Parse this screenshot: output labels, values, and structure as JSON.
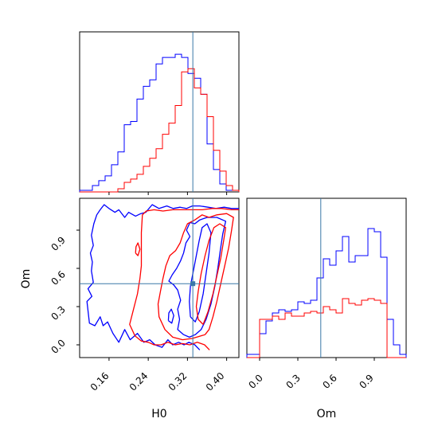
{
  "chart_data": {
    "type": "corner",
    "parameters": [
      "H0",
      "Om"
    ],
    "truth": {
      "H0": 0.331,
      "Om": 0.48
    },
    "truth_color": "#3a78a8",
    "series_colors": [
      "#0000ff",
      "#ff0000"
    ],
    "panels": [
      {
        "id": "H0-marginal",
        "type": "histogram",
        "xlim": [
          0.1,
          0.425
        ],
        "bin_edges": [
          0.1,
          0.113,
          0.126,
          0.139,
          0.152,
          0.165,
          0.178,
          0.191,
          0.204,
          0.217,
          0.23,
          0.243,
          0.256,
          0.269,
          0.282,
          0.295,
          0.308,
          0.321,
          0.334,
          0.347,
          0.36,
          0.373,
          0.386,
          0.399,
          0.412,
          0.425
        ],
        "series": [
          {
            "counts": [
              0.01,
              0.01,
              0.04,
              0.07,
              0.1,
              0.17,
              0.25,
              0.42,
              0.44,
              0.58,
              0.66,
              0.7,
              0.8,
              0.84,
              0.84,
              0.86,
              0.84,
              0.74,
              0.71,
              0.61,
              0.3,
              0.14,
              0.05,
              0.01,
              0.01
            ]
          },
          {
            "counts": [
              0,
              0,
              0,
              0,
              0,
              0,
              0.02,
              0.06,
              0.08,
              0.11,
              0.16,
              0.21,
              0.27,
              0.36,
              0.43,
              0.54,
              0.75,
              0.77,
              0.65,
              0.61,
              0.47,
              0.26,
              0.13,
              0.04,
              0.01
            ]
          }
        ],
        "ticks": [
          0.16,
          0.24,
          0.32,
          0.4
        ]
      },
      {
        "id": "H0-Om-joint",
        "type": "contour",
        "xlim": [
          0.1,
          0.425
        ],
        "ylim": [
          -0.1,
          1.15
        ],
        "xlabel": "H0",
        "ylabel": "Om",
        "xticks": [
          "0.16",
          "0.24",
          "0.32",
          "0.40"
        ],
        "yticks": [
          "0.0",
          "0.3",
          "0.6",
          "0.9"
        ],
        "contours": [
          {
            "name": "blue-outer",
            "points": [
              [
                0.345,
                -0.04
              ],
              [
                0.335,
                0.0
              ],
              [
                0.323,
                0.02
              ],
              [
                0.313,
                0.0
              ],
              [
                0.302,
                0.02
              ],
              [
                0.29,
                0.0
              ],
              [
                0.28,
                0.04
              ],
              [
                0.268,
                -0.02
              ],
              [
                0.254,
                0.0
              ],
              [
                0.243,
                0.04
              ],
              [
                0.231,
                0.02
              ],
              [
                0.218,
                0.09
              ],
              [
                0.203,
                0.04
              ],
              [
                0.192,
                0.12
              ],
              [
                0.18,
                0.02
              ],
              [
                0.168,
                0.09
              ],
              [
                0.157,
                0.18
              ],
              [
                0.148,
                0.15
              ],
              [
                0.142,
                0.22
              ],
              [
                0.131,
                0.15
              ],
              [
                0.12,
                0.17
              ],
              [
                0.115,
                0.34
              ],
              [
                0.125,
                0.38
              ],
              [
                0.117,
                0.44
              ],
              [
                0.128,
                0.49
              ],
              [
                0.124,
                0.58
              ],
              [
                0.126,
                0.65
              ],
              [
                0.122,
                0.72
              ],
              [
                0.128,
                0.78
              ],
              [
                0.124,
                0.86
              ],
              [
                0.129,
                0.95
              ],
              [
                0.135,
                1.02
              ],
              [
                0.142,
                1.06
              ],
              [
                0.15,
                1.1
              ],
              [
                0.16,
                1.07
              ],
              [
                0.172,
                1.04
              ],
              [
                0.18,
                1.06
              ],
              [
                0.192,
                1.0
              ],
              [
                0.2,
                1.04
              ],
              [
                0.214,
                1.01
              ],
              [
                0.225,
                1.03
              ],
              [
                0.235,
                1.04
              ],
              [
                0.248,
                1.1
              ],
              [
                0.262,
                1.07
              ],
              [
                0.278,
                1.09
              ],
              [
                0.291,
                1.07
              ],
              [
                0.305,
                1.08
              ],
              [
                0.318,
                1.07
              ],
              [
                0.33,
                1.09
              ],
              [
                0.345,
                1.09
              ],
              [
                0.362,
                1.08
              ],
              [
                0.378,
                1.07
              ],
              [
                0.395,
                1.08
              ],
              [
                0.41,
                1.07
              ],
              [
                0.425,
                1.07
              ]
            ]
          },
          {
            "name": "blue-inner",
            "points": [
              [
                0.312,
                0.08
              ],
              [
                0.324,
                0.06
              ],
              [
                0.336,
                0.08
              ],
              [
                0.348,
                0.12
              ],
              [
                0.358,
                0.2
              ],
              [
                0.368,
                0.32
              ],
              [
                0.376,
                0.46
              ],
              [
                0.382,
                0.6
              ],
              [
                0.387,
                0.74
              ],
              [
                0.392,
                0.87
              ],
              [
                0.398,
                0.97
              ],
              [
                0.38,
                1.0
              ],
              [
                0.36,
                1.0
              ],
              [
                0.345,
                0.98
              ],
              [
                0.335,
                0.95
              ],
              [
                0.325,
                0.96
              ],
              [
                0.318,
                0.9
              ],
              [
                0.325,
                0.85
              ],
              [
                0.317,
                0.8
              ],
              [
                0.312,
                0.72
              ],
              [
                0.306,
                0.66
              ],
              [
                0.298,
                0.6
              ],
              [
                0.289,
                0.55
              ],
              [
                0.282,
                0.5
              ],
              [
                0.292,
                0.47
              ],
              [
                0.3,
                0.43
              ],
              [
                0.306,
                0.35
              ],
              [
                0.3,
                0.28
              ],
              [
                0.304,
                0.2
              ],
              [
                0.3,
                0.12
              ],
              [
                0.312,
                0.08
              ]
            ]
          },
          {
            "name": "blue-core",
            "points": [
              [
                0.326,
                0.22
              ],
              [
                0.336,
                0.18
              ],
              [
                0.344,
                0.26
              ],
              [
                0.352,
                0.4
              ],
              [
                0.358,
                0.56
              ],
              [
                0.364,
                0.72
              ],
              [
                0.368,
                0.88
              ],
              [
                0.36,
                0.95
              ],
              [
                0.35,
                0.92
              ],
              [
                0.344,
                0.82
              ],
              [
                0.338,
                0.7
              ],
              [
                0.332,
                0.58
              ],
              [
                0.326,
                0.46
              ],
              [
                0.324,
                0.34
              ],
              [
                0.326,
                0.22
              ]
            ]
          },
          {
            "name": "blue-island",
            "points": [
              [
                0.281,
                0.19
              ],
              [
                0.288,
                0.17
              ],
              [
                0.292,
                0.23
              ],
              [
                0.287,
                0.28
              ],
              [
                0.282,
                0.25
              ],
              [
                0.281,
                0.19
              ]
            ]
          },
          {
            "name": "red-outer",
            "points": [
              [
                0.365,
                -0.04
              ],
              [
                0.355,
                0.0
              ],
              [
                0.34,
                0.02
              ],
              [
                0.325,
                0.0
              ],
              [
                0.31,
                0.01
              ],
              [
                0.295,
                0.0
              ],
              [
                0.28,
                0.02
              ],
              [
                0.266,
                0.0
              ],
              [
                0.252,
                0.0
              ],
              [
                0.24,
                0.02
              ],
              [
                0.226,
                0.03
              ],
              [
                0.213,
                0.07
              ],
              [
                0.202,
                0.16
              ],
              [
                0.21,
                0.28
              ],
              [
                0.218,
                0.4
              ],
              [
                0.223,
                0.52
              ],
              [
                0.226,
                0.62
              ],
              [
                0.226,
                0.75
              ],
              [
                0.226,
                0.88
              ],
              [
                0.228,
                1.02
              ],
              [
                0.236,
                1.05
              ],
              [
                0.252,
                1.06
              ],
              [
                0.27,
                1.05
              ],
              [
                0.29,
                1.06
              ],
              [
                0.31,
                1.06
              ],
              [
                0.33,
                1.06
              ],
              [
                0.35,
                1.06
              ],
              [
                0.37,
                1.07
              ],
              [
                0.39,
                1.07
              ],
              [
                0.41,
                1.06
              ],
              [
                0.425,
                1.06
              ]
            ]
          },
          {
            "name": "red-mid",
            "points": [
              [
                0.356,
                0.08
              ],
              [
                0.364,
                0.12
              ],
              [
                0.372,
                0.22
              ],
              [
                0.38,
                0.34
              ],
              [
                0.388,
                0.48
              ],
              [
                0.396,
                0.62
              ],
              [
                0.404,
                0.76
              ],
              [
                0.41,
                0.9
              ],
              [
                0.414,
                1.0
              ],
              [
                0.4,
                1.03
              ],
              [
                0.38,
                1.02
              ],
              [
                0.364,
                1.0
              ],
              [
                0.35,
                1.02
              ],
              [
                0.335,
                0.98
              ],
              [
                0.32,
                0.95
              ],
              [
                0.312,
                0.88
              ],
              [
                0.305,
                0.8
              ],
              [
                0.296,
                0.74
              ],
              [
                0.284,
                0.7
              ],
              [
                0.276,
                0.62
              ],
              [
                0.27,
                0.52
              ],
              [
                0.265,
                0.42
              ],
              [
                0.26,
                0.32
              ],
              [
                0.262,
                0.22
              ],
              [
                0.274,
                0.12
              ],
              [
                0.29,
                0.06
              ],
              [
                0.31,
                0.04
              ],
              [
                0.33,
                0.05
              ],
              [
                0.356,
                0.08
              ]
            ]
          },
          {
            "name": "red-core",
            "points": [
              [
                0.352,
                0.16
              ],
              [
                0.362,
                0.26
              ],
              [
                0.372,
                0.4
              ],
              [
                0.38,
                0.54
              ],
              [
                0.388,
                0.68
              ],
              [
                0.394,
                0.82
              ],
              [
                0.398,
                0.92
              ],
              [
                0.386,
                0.95
              ],
              [
                0.374,
                0.92
              ],
              [
                0.364,
                0.82
              ],
              [
                0.356,
                0.7
              ],
              [
                0.348,
                0.56
              ],
              [
                0.342,
                0.42
              ],
              [
                0.338,
                0.3
              ],
              [
                0.342,
                0.2
              ],
              [
                0.352,
                0.16
              ]
            ]
          },
          {
            "name": "red-island",
            "points": [
              [
                0.214,
                0.72
              ],
              [
                0.219,
                0.7
              ],
              [
                0.223,
                0.75
              ],
              [
                0.219,
                0.8
              ],
              [
                0.215,
                0.77
              ],
              [
                0.214,
                0.72
              ]
            ]
          }
        ]
      },
      {
        "id": "Om-marginal",
        "type": "histogram",
        "xlim": [
          -0.1,
          1.15
        ],
        "xlabel": "Om",
        "bin_edges": [
          -0.1,
          -0.05,
          0.0,
          0.05,
          0.1,
          0.15,
          0.2,
          0.25,
          0.3,
          0.35,
          0.4,
          0.45,
          0.5,
          0.55,
          0.6,
          0.65,
          0.7,
          0.75,
          0.8,
          0.85,
          0.9,
          0.95,
          1.0,
          1.05,
          1.1,
          1.15
        ],
        "series": [
          {
            "counts": [
              0.02,
              0.02,
              0.15,
              0.23,
              0.28,
              0.3,
              0.29,
              0.3,
              0.35,
              0.34,
              0.36,
              0.5,
              0.62,
              0.58,
              0.67,
              0.76,
              0.6,
              0.64,
              0.64,
              0.81,
              0.79,
              0.63,
              0.24,
              0.08,
              0.02
            ]
          },
          {
            "counts": [
              0,
              0,
              0.24,
              0.24,
              0.26,
              0.24,
              0.28,
              0.26,
              0.26,
              0.28,
              0.29,
              0.28,
              0.32,
              0.3,
              0.28,
              0.37,
              0.34,
              0.33,
              0.36,
              0.37,
              0.36,
              0.34,
              0,
              0,
              0
            ]
          }
        ],
        "xticks": [
          "0.0",
          "0.3",
          "0.6",
          "0.9"
        ]
      }
    ]
  }
}
